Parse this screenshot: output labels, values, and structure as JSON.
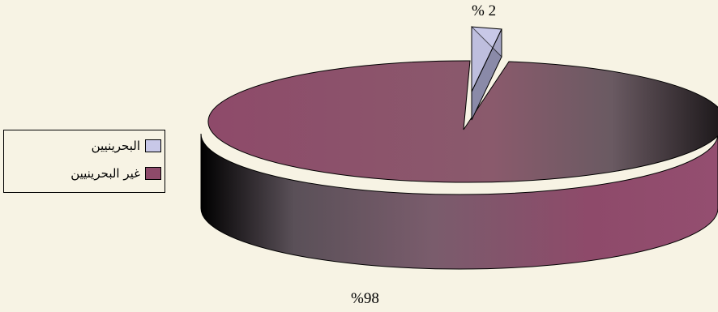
{
  "chart_data": {
    "type": "pie",
    "style": "3d exploded",
    "title": "",
    "slices": [
      {
        "label": "البحرينيين",
        "value": 2,
        "value_label": "% 2",
        "color": "#c8c8e8"
      },
      {
        "label": "غير البحرينيين",
        "value": 98,
        "value_label": "%98",
        "color": "#8e4a6a"
      }
    ],
    "legend_position": "left"
  }
}
